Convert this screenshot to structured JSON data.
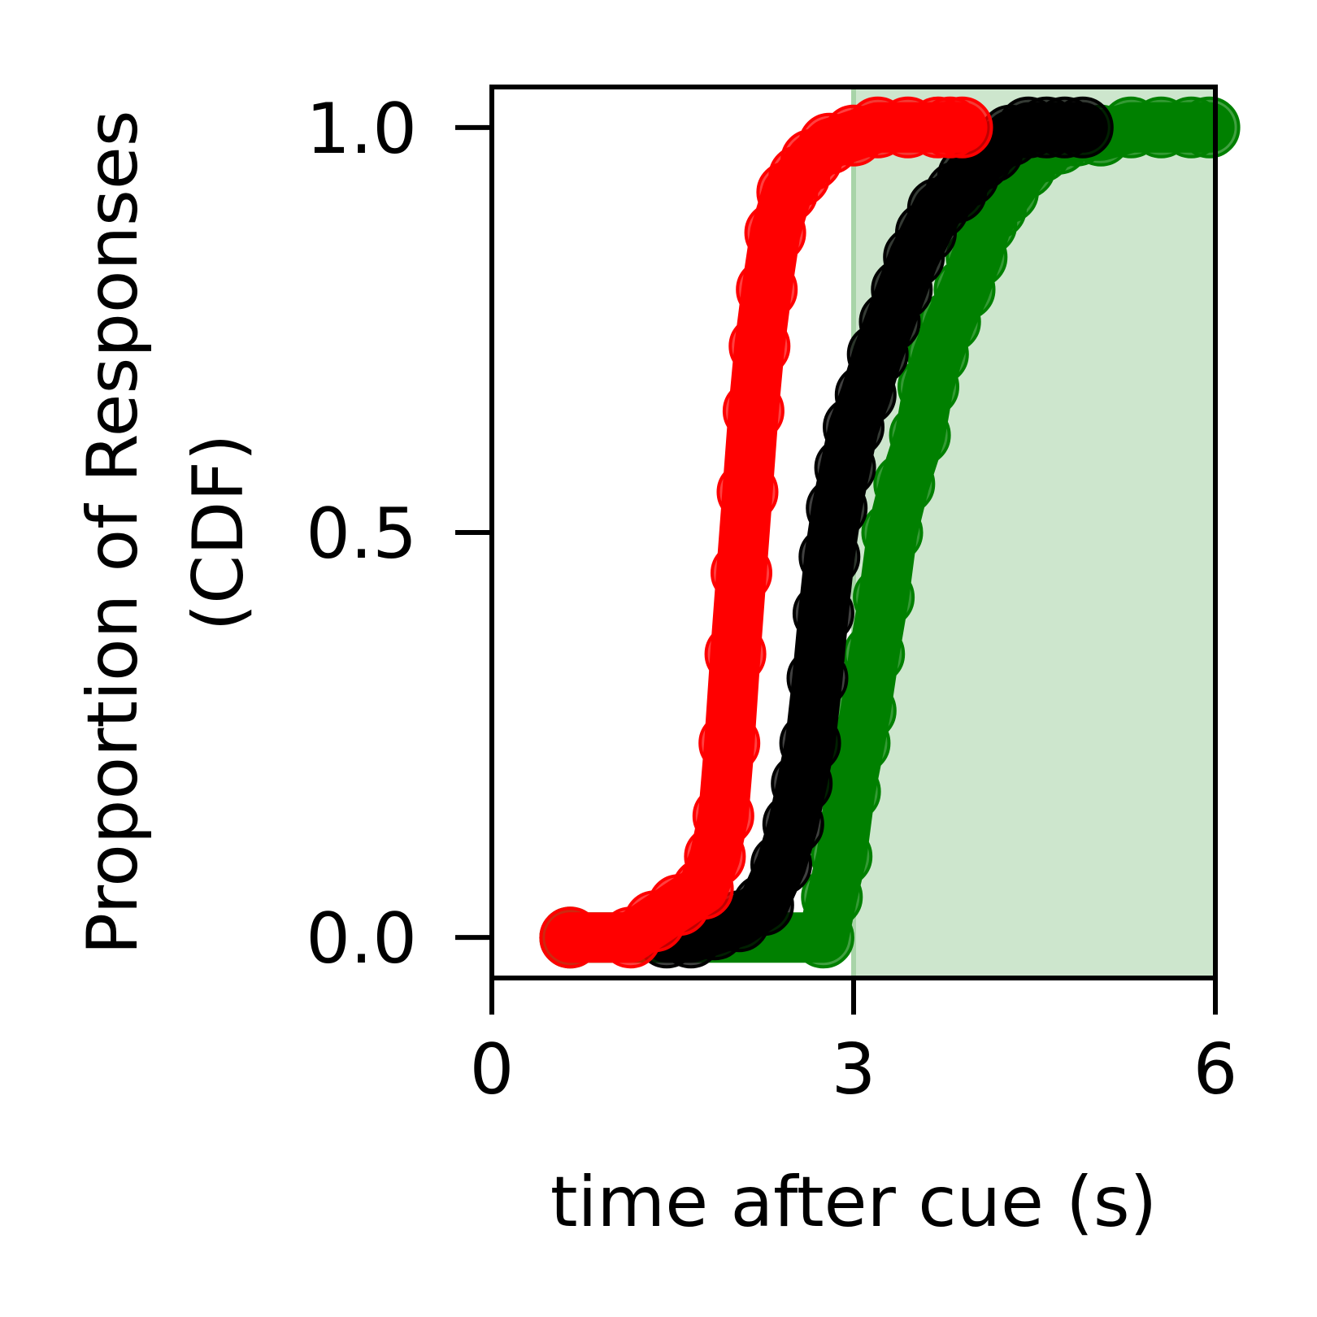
{
  "chart_data": {
    "type": "line",
    "xlabel": "time after cue (s)",
    "ylabel_line1": "Proportion of Responses",
    "ylabel_line2": "(CDF)",
    "xlim": [
      0,
      6
    ],
    "ylim": [
      -0.05,
      1.05
    ],
    "xticks": [
      0,
      3,
      6
    ],
    "xtick_labels": [
      "0",
      "3",
      "6"
    ],
    "yticks": [
      0.0,
      0.5,
      1.0
    ],
    "ytick_labels": [
      "0.0",
      "0.5",
      "1.0"
    ],
    "shaded_region": {
      "x_start": 3.0,
      "x_end": 6.0,
      "color": "#cde6cd",
      "edge_color": "#a8d4a8"
    },
    "grid": false,
    "series": [
      {
        "color": "#008000",
        "x": [
          0.65,
          2.75,
          2.82,
          2.9,
          2.97,
          3.05,
          3.1,
          3.17,
          3.25,
          3.32,
          3.42,
          3.55,
          3.62,
          3.7,
          3.8,
          3.92,
          4.02,
          4.1,
          4.18,
          4.28,
          4.42,
          4.55,
          4.7,
          4.85,
          5.05,
          5.3,
          5.55,
          5.8,
          5.95
        ],
        "y": [
          0.0,
          0.0,
          0.05,
          0.1,
          0.18,
          0.24,
          0.28,
          0.35,
          0.42,
          0.5,
          0.56,
          0.62,
          0.68,
          0.72,
          0.76,
          0.8,
          0.84,
          0.88,
          0.9,
          0.92,
          0.95,
          0.97,
          0.98,
          0.99,
          0.99,
          1.0,
          1.0,
          1.0,
          1.0
        ]
      },
      {
        "color": "#000000",
        "x": [
          1.45,
          1.65,
          1.85,
          2.05,
          2.25,
          2.4,
          2.5,
          2.57,
          2.64,
          2.7,
          2.75,
          2.8,
          2.86,
          2.93,
          3.0,
          3.1,
          3.2,
          3.3,
          3.4,
          3.5,
          3.6,
          3.7,
          3.85,
          3.95,
          4.05,
          4.15,
          4.3,
          4.45,
          4.6,
          4.75,
          4.9
        ],
        "y": [
          0.0,
          0.0,
          0.01,
          0.02,
          0.04,
          0.09,
          0.14,
          0.19,
          0.24,
          0.32,
          0.4,
          0.47,
          0.53,
          0.58,
          0.63,
          0.67,
          0.72,
          0.76,
          0.8,
          0.84,
          0.87,
          0.9,
          0.92,
          0.94,
          0.96,
          0.97,
          0.99,
          1.0,
          1.0,
          1.0,
          1.0
        ]
      },
      {
        "color": "#ff0000",
        "x": [
          0.65,
          1.15,
          1.35,
          1.55,
          1.75,
          1.85,
          1.92,
          1.97,
          2.02,
          2.07,
          2.12,
          2.17,
          2.22,
          2.28,
          2.35,
          2.45,
          2.55,
          2.65,
          2.8,
          3.0,
          3.2,
          3.45,
          3.7,
          3.8,
          3.9
        ],
        "y": [
          0.0,
          0.0,
          0.02,
          0.04,
          0.06,
          0.1,
          0.15,
          0.24,
          0.35,
          0.45,
          0.55,
          0.65,
          0.73,
          0.8,
          0.87,
          0.92,
          0.94,
          0.96,
          0.98,
          0.99,
          1.0,
          1.0,
          1.0,
          1.0,
          1.0
        ]
      }
    ]
  }
}
